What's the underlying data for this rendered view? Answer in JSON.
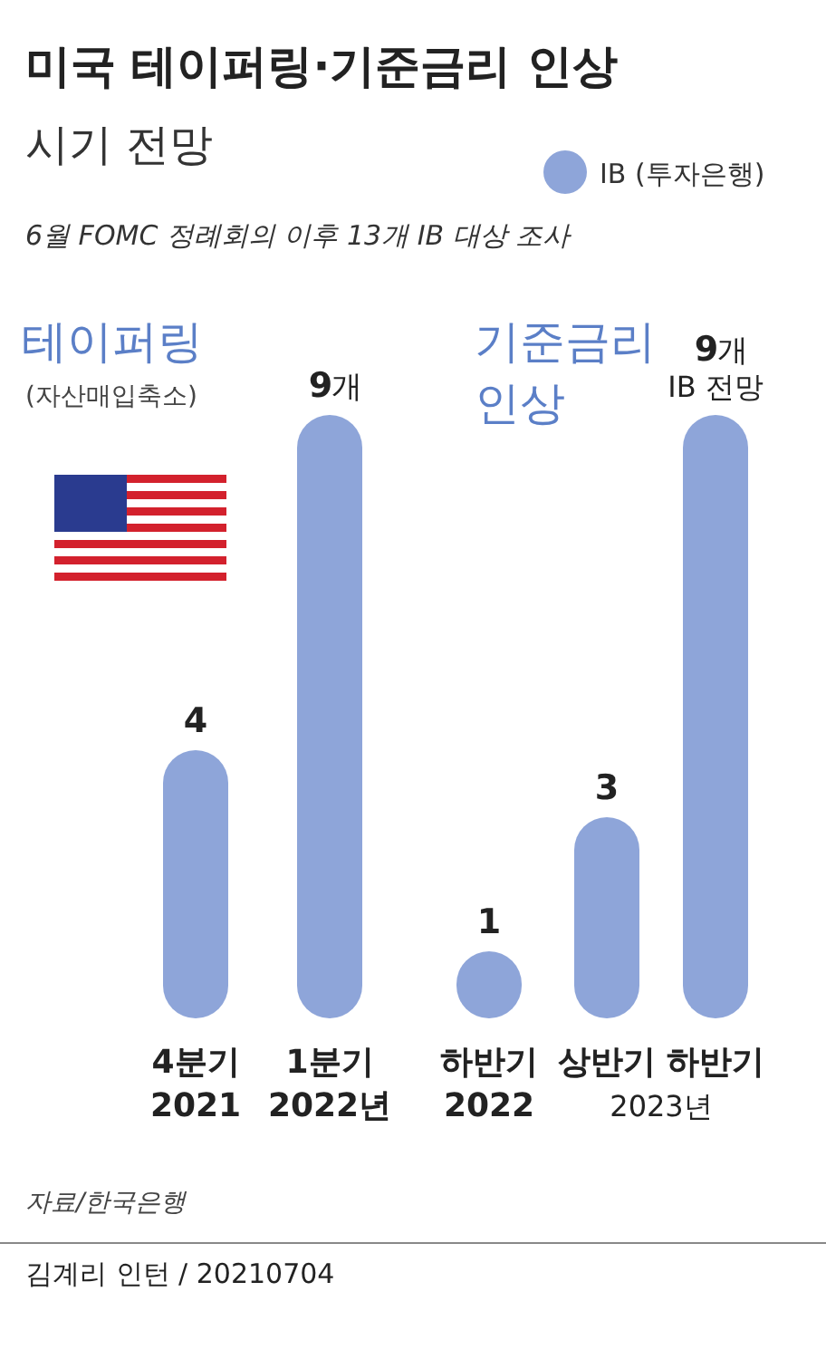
{
  "chart_data": [
    {
      "type": "other",
      "title": "미국 테이퍼링·기준금리 인상",
      "subtitle": "시기 전망",
      "annotations": [
        "6월 FOMC 정례회의 이후 13개 IB 대상 조사",
        "자료/한국은행",
        "김계리 인턴 / 20210704"
      ]
    },
    {
      "type": "bar",
      "title": "테이퍼링",
      "subtitle": "(자산매입축소)",
      "categories": [
        "4분기\n2021",
        "1분기\n2022년"
      ],
      "series": [
        {
          "name": "IB (투자은행)",
          "color": "#8ea5d9",
          "values": [
            4,
            9
          ]
        }
      ],
      "data_labels": true,
      "annotations": [
        {
          "text": "개",
          "x": "1분기\n2022년",
          "y": 9
        }
      ],
      "legend": "top right"
    },
    {
      "type": "bar",
      "title": "기준금리\n인상",
      "categories": [
        "하반기\n2022",
        "상반기",
        "하반기"
      ],
      "series": [
        {
          "color": "#8ea5d9",
          "values": [
            1,
            3,
            9
          ]
        }
      ],
      "data_labels": true,
      "annotations": [
        "2023년",
        {
          "text": "개\nIB 전망",
          "x": "하반기",
          "y": 9
        }
      ]
    }
  ]
}
